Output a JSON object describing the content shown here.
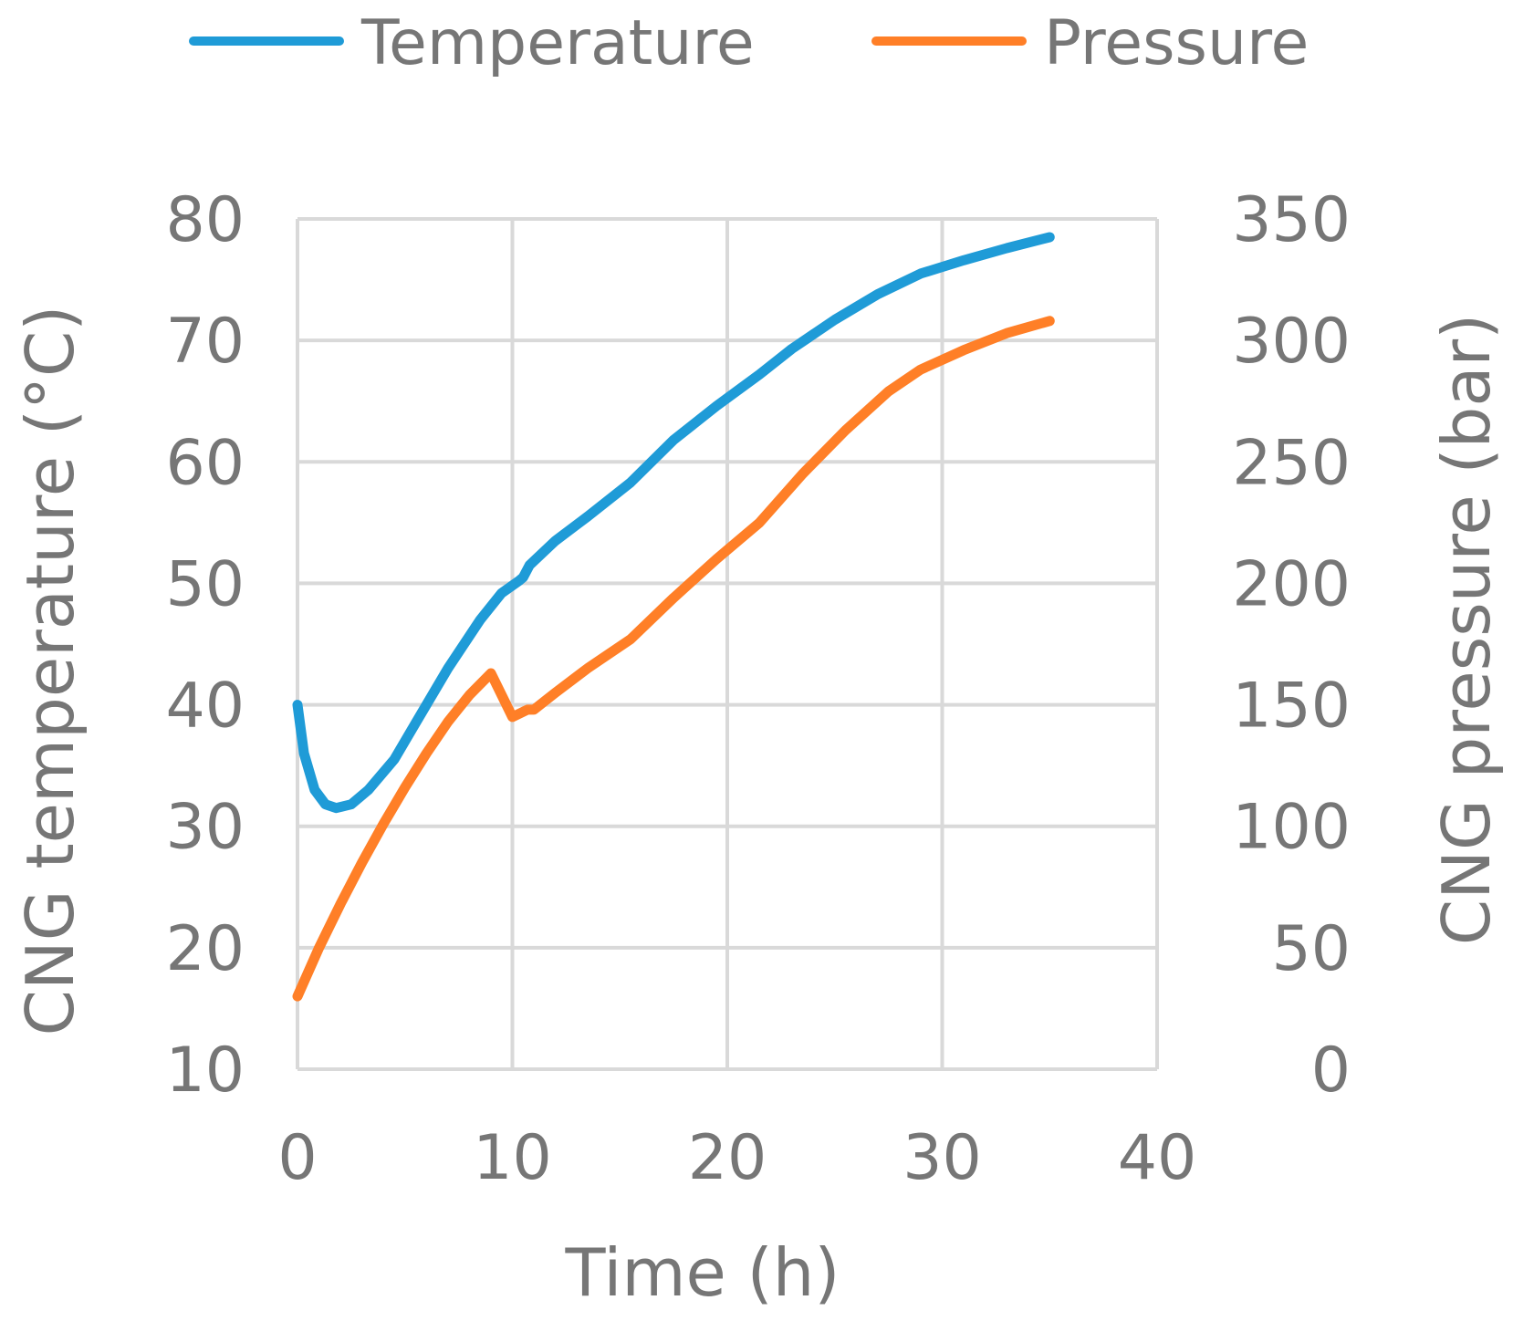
{
  "chart_data": {
    "type": "line",
    "title": "",
    "xlabel": "Time (h)",
    "ylabel_left": "CNG temperature (°C)",
    "ylabel_right": "CNG pressure (bar)",
    "xlim": [
      0,
      40
    ],
    "ylim_left": [
      10,
      80
    ],
    "ylim_right": [
      0,
      350
    ],
    "x_ticks": [
      "0",
      "10",
      "20",
      "30",
      "40"
    ],
    "y_ticks_left": [
      "10",
      "20",
      "30",
      "40",
      "50",
      "60",
      "70",
      "80"
    ],
    "y_ticks_right": [
      "0",
      "50",
      "100",
      "150",
      "200",
      "250",
      "300",
      "350"
    ],
    "grid": true,
    "legend_position": "top",
    "series": [
      {
        "name": "Temperature",
        "axis": "left",
        "color": "#1F9BD7",
        "x": [
          0,
          0.3,
          0.8,
          1.3,
          1.8,
          2.5,
          3.3,
          4.5,
          5.5,
          7,
          8.5,
          9.5,
          10.3,
          10.5,
          10.8,
          12,
          13.5,
          15.5,
          17.5,
          19.5,
          21.5,
          23,
          25,
          27,
          29,
          31,
          33,
          35
        ],
        "values": [
          40,
          36,
          33,
          31.8,
          31.5,
          31.8,
          33,
          35.5,
          38.5,
          43,
          47,
          49.2,
          50.2,
          50.5,
          51.5,
          53.5,
          55.5,
          58.3,
          61.8,
          64.6,
          67.2,
          69.3,
          71.7,
          73.8,
          75.5,
          76.6,
          77.6,
          78.5
        ],
        "label_x": 0,
        "label_y": 40
      },
      {
        "name": "Pressure",
        "axis": "right",
        "color": "#FF7F27",
        "x": [
          0,
          1,
          2,
          3,
          4,
          5,
          6,
          7,
          8,
          9,
          10,
          10.7,
          11,
          12,
          13.5,
          15.5,
          17.5,
          19.5,
          21.5,
          23.5,
          25.5,
          27.5,
          29,
          31,
          33,
          35
        ],
        "values": [
          30,
          50,
          68,
          85,
          101,
          116,
          130,
          143,
          154,
          163,
          145,
          148,
          148,
          155,
          165,
          177,
          194,
          210,
          225,
          245,
          263,
          279,
          288,
          296,
          303,
          308
        ]
      }
    ]
  }
}
